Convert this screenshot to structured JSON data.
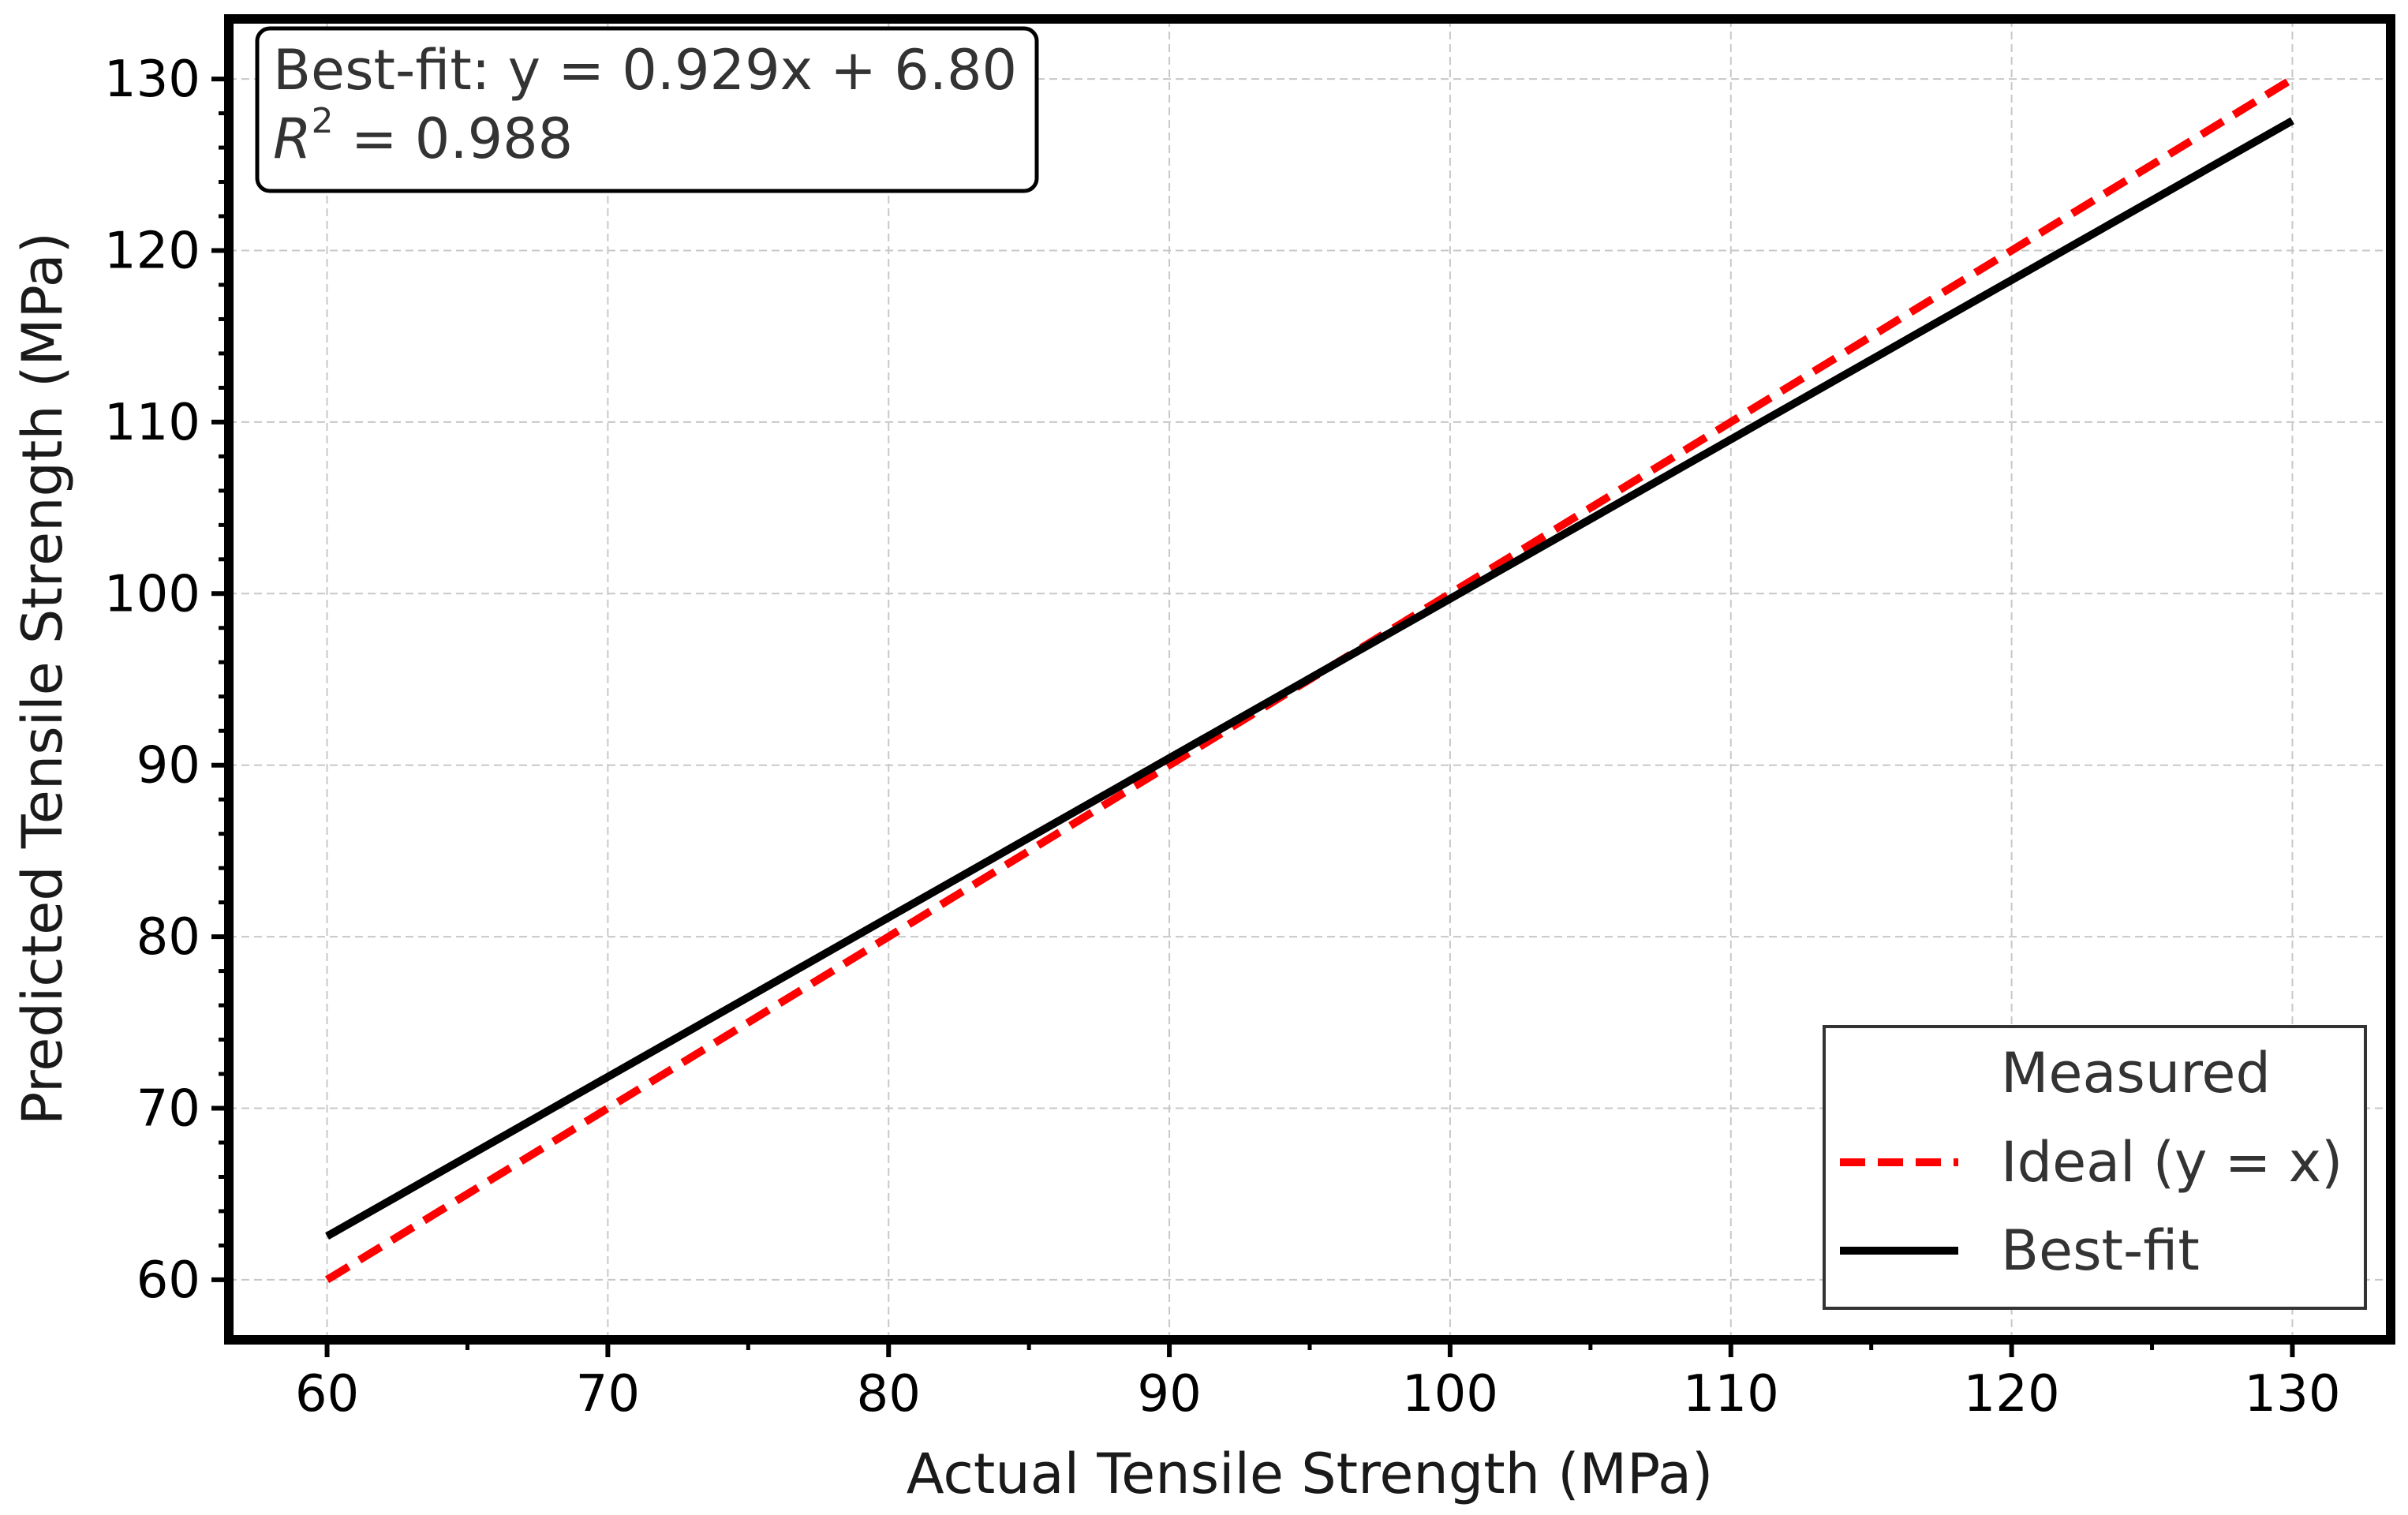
{
  "chart_data": {
    "type": "line",
    "title": "",
    "xlabel": "Actual Tensile Strength (MPa)",
    "ylabel": "Predicted Tensile Strength (MPa)",
    "xlim": [
      56.5,
      133.5
    ],
    "ylim": [
      56.5,
      133.5
    ],
    "xticks": [
      60,
      70,
      80,
      90,
      100,
      110,
      120,
      130
    ],
    "yticks": [
      60,
      70,
      80,
      90,
      100,
      110,
      120,
      130
    ],
    "xtick_labels": [
      "60",
      "70",
      "80",
      "90",
      "100",
      "110",
      "120",
      "130"
    ],
    "ytick_labels": [
      "60",
      "70",
      "80",
      "90",
      "100",
      "110",
      "120",
      "130"
    ],
    "grid": true,
    "series": [
      {
        "name": "Measured",
        "style": "points",
        "color": "",
        "x": [],
        "y": []
      },
      {
        "name": "Ideal (y = x)",
        "style": "dashed",
        "color": "#ff0000",
        "x": [
          60,
          130
        ],
        "y": [
          60,
          130
        ]
      },
      {
        "name": "Best-fit",
        "style": "solid",
        "color": "#000000",
        "x": [
          60,
          130
        ],
        "y": [
          62.54,
          127.57
        ]
      }
    ],
    "annotation": {
      "line1": "Best-fit: y = 0.929x + 6.80",
      "r_symbol": "R",
      "r_exponent": "2",
      "r_rest": " = 0.988"
    },
    "legend": {
      "placement": "lower-right",
      "entries": [
        "Measured",
        "Ideal (y = x)",
        "Best-fit"
      ]
    }
  }
}
